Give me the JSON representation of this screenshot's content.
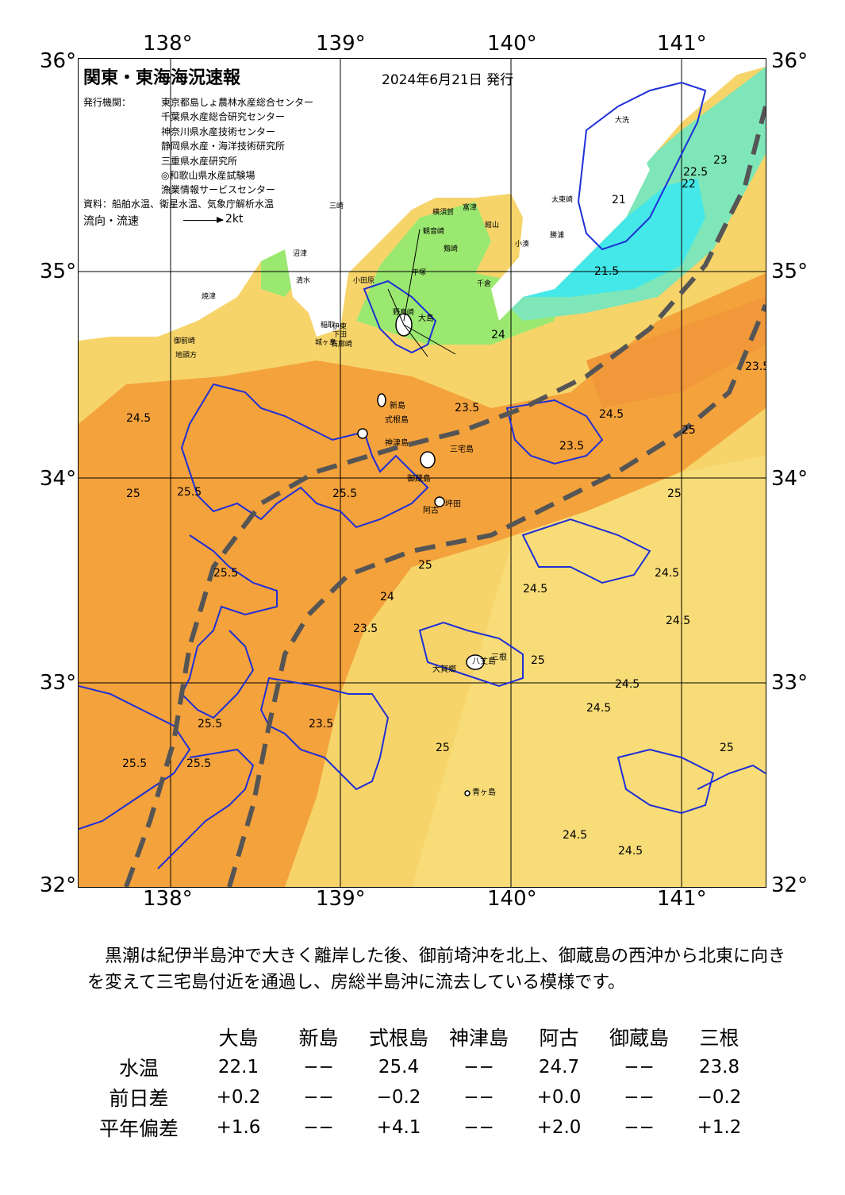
{
  "map": {
    "title": "関東・東海海況速報",
    "date": "2024年6月21日 発行",
    "publisher_label": "発行機関：",
    "publishers": [
      "東京都島しょ農林水産総合センター",
      "千葉県水産総合研究センター",
      "神奈川県水産技術センター",
      "静岡県水産・海洋技術研究所",
      "三重県水産研究所",
      "◎和歌山県水産試験場",
      "漁業情報サービスセンター"
    ],
    "source": "資料：船舶水温、衛星水温、気象庁解析水温",
    "flow_label": "流向・流速",
    "flow_scale": "2kt",
    "lon_ticks": [
      "138°",
      "139°",
      "140°",
      "141°"
    ],
    "lat_ticks": [
      "36°",
      "35°",
      "34°",
      "33°",
      "32°"
    ],
    "islands": [
      "大島",
      "新島",
      "式根島",
      "神津島",
      "三宅島",
      "御蔵島",
      "坪田",
      "阿古",
      "八丈島",
      "三根",
      "大賀郷",
      "青ヶ島"
    ],
    "places": [
      "大洗",
      "太東崎",
      "勝浦",
      "富津",
      "小湊",
      "館山",
      "野島崎",
      "平塚",
      "横須賀",
      "観音崎",
      "剱崎",
      "三崎",
      "小田原",
      "伊東",
      "稲取",
      "下田",
      "石廊崎",
      "御前崎",
      "地頭方",
      "焼津",
      "清水",
      "沼津",
      "城ヶ島",
      "千倉"
    ],
    "contour_labels": [
      "21",
      "21.5",
      "22",
      "22.5",
      "23",
      "23.5",
      "24",
      "24.5",
      "25",
      "25.5"
    ],
    "colors": {
      "warm": "#f4a23c",
      "mild": "#f8c050",
      "yellow": "#f6d46a",
      "green": "#9be870",
      "lightgreen": "#c6ee80",
      "cyan": "#44e8e8",
      "teal": "#7ee6b8",
      "land": "#ffffff",
      "kuroshio_axis": "#555555",
      "contour": "#1f2fd6"
    }
  },
  "summary": "黒潮は紀伊半島沖で大きく離岸した後、御前埼沖を北上、御蔵島の西沖から北東に向きを変えて三宅島付近を通過し、房総半島沖に流去している模様です。",
  "table": {
    "columns": [
      "大島",
      "新島",
      "式根島",
      "神津島",
      "阿古",
      "御蔵島",
      "三根"
    ],
    "rows": [
      {
        "label": "水温",
        "values": [
          "22.1",
          "−−",
          "25.4",
          "−−",
          "24.7",
          "−−",
          "23.8"
        ]
      },
      {
        "label": "前日差",
        "values": [
          "+0.2",
          "−−",
          "−0.2",
          "−−",
          "+0.0",
          "−−",
          "−0.2"
        ]
      },
      {
        "label": "平年偏差",
        "values": [
          "+1.6",
          "−−",
          "+4.1",
          "−−",
          "+2.0",
          "−−",
          "+1.2"
        ]
      }
    ]
  }
}
